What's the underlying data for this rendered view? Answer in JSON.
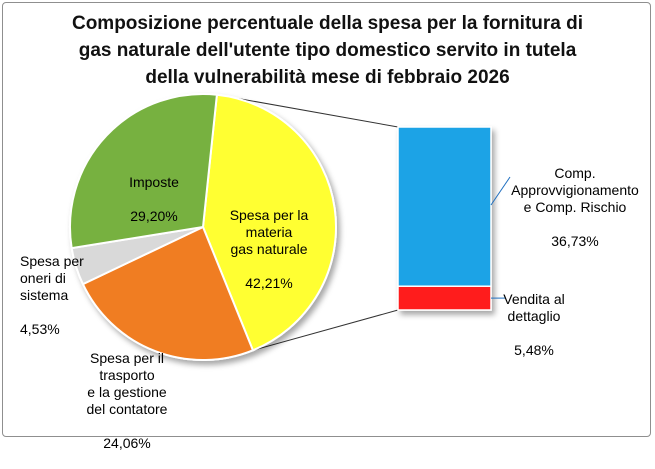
{
  "chart_data": {
    "type": "pie",
    "title": "Composizione percentuale della spesa per la fornitura di\ngas naturale dell'utente tipo domestico servito in tutela\ndella vulnerabilità mese di febbraio 2026",
    "slices": [
      {
        "label": "Spesa per la\nmateria\ngas naturale",
        "value_text": "42,21%",
        "value": 42.21,
        "color": "#ffff33"
      },
      {
        "label": "Spesa per il\ntrasporto\ne la gestione\ndel contatore",
        "value_text": "24,06%",
        "value": 24.06,
        "color": "#f07d22"
      },
      {
        "label": "Spesa per\noneri di\nsistema",
        "value_text": "4,53%",
        "value": 4.53,
        "color": "#d9d9d9"
      },
      {
        "label": "Imposte",
        "value_text": "29,20%",
        "value": 29.2,
        "color": "#77b13f"
      }
    ],
    "breakdown": {
      "of_slice": "Spesa per la\nmateria\ngas naturale",
      "segments": [
        {
          "label": "Comp.\nApprovvigionamento\ne  Comp. Rischio",
          "value_text": "36,73%",
          "value": 36.73,
          "color": "#1ea3e6"
        },
        {
          "label": "Vendita al\ndettaglio",
          "value_text": "5,48%",
          "value": 5.48,
          "color": "#ff1a1a"
        }
      ]
    }
  }
}
